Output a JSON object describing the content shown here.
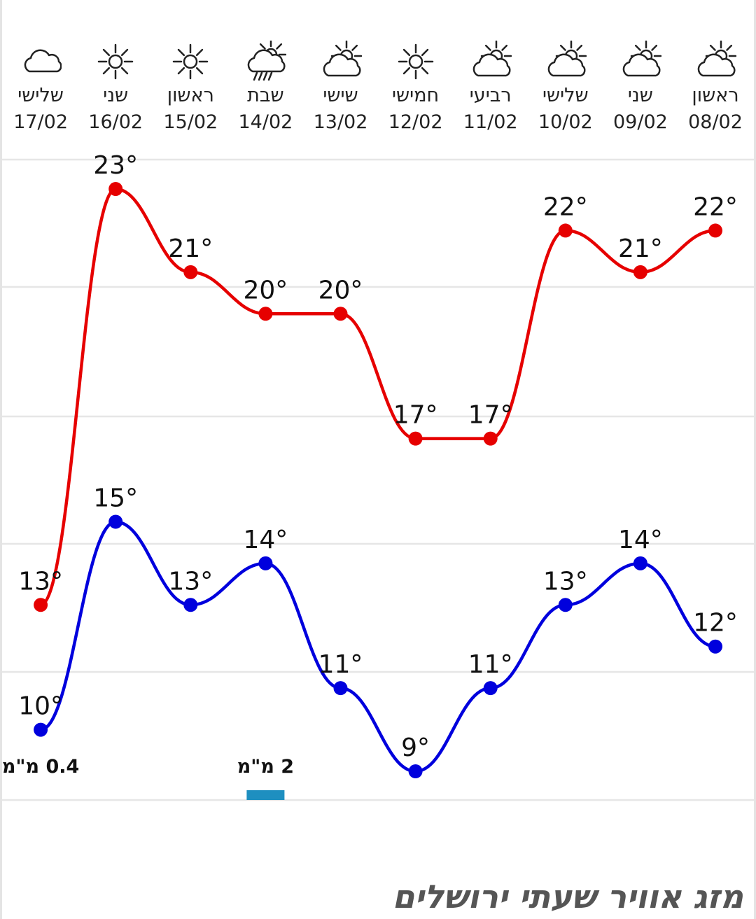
{
  "title": "מזג אוויר שעתי ירושלים",
  "colors": {
    "max": "#e60000",
    "min": "#0000dd",
    "precip_bar": "#1e8fc0",
    "grid": "#e6e6e6"
  },
  "days": [
    {
      "name": "ראשון",
      "date": "08/02",
      "icon": "partly-cloudy-icon"
    },
    {
      "name": "שני",
      "date": "09/02",
      "icon": "partly-cloudy-icon"
    },
    {
      "name": "שלישי",
      "date": "10/02",
      "icon": "partly-cloudy-icon"
    },
    {
      "name": "רביעי",
      "date": "11/02",
      "icon": "partly-cloudy-icon"
    },
    {
      "name": "חמישי",
      "date": "12/02",
      "icon": "sun-icon"
    },
    {
      "name": "שישי",
      "date": "13/02",
      "icon": "partly-cloudy-icon"
    },
    {
      "name": "שבת",
      "date": "14/02",
      "icon": "rain-sun-icon"
    },
    {
      "name": "ראשון",
      "date": "15/02",
      "icon": "sun-icon"
    },
    {
      "name": "שני",
      "date": "16/02",
      "icon": "sun-icon"
    },
    {
      "name": "שלישי",
      "date": "17/02",
      "icon": "cloud-icon"
    }
  ],
  "chart_data": {
    "type": "line",
    "categories": [
      "08/02",
      "09/02",
      "10/02",
      "11/02",
      "12/02",
      "13/02",
      "14/02",
      "15/02",
      "16/02",
      "17/02"
    ],
    "series": [
      {
        "values": [
          22,
          21,
          22,
          17,
          17,
          20,
          20,
          21,
          23,
          13
        ],
        "labels": [
          "22°",
          "21°",
          "22°",
          "17°",
          "17°",
          "20°",
          "20°",
          "21°",
          "23°",
          "13°"
        ]
      },
      {
        "values": [
          12,
          14,
          13,
          11,
          9,
          11,
          14,
          13,
          15,
          10
        ],
        "labels": [
          "12°",
          "14°",
          "13°",
          "11°",
          "9°",
          "11°",
          "14°",
          "13°",
          "15°",
          "10°"
        ]
      }
    ],
    "precipitation": [
      {
        "date": "14/02",
        "label": "2 מ\"מ",
        "amount_mm": 2
      },
      {
        "date": "17/02",
        "label": "0.4 מ\"מ",
        "amount_mm": 0.4
      }
    ],
    "ylim": [
      8,
      24
    ],
    "grid": true,
    "direction": "rtl"
  }
}
